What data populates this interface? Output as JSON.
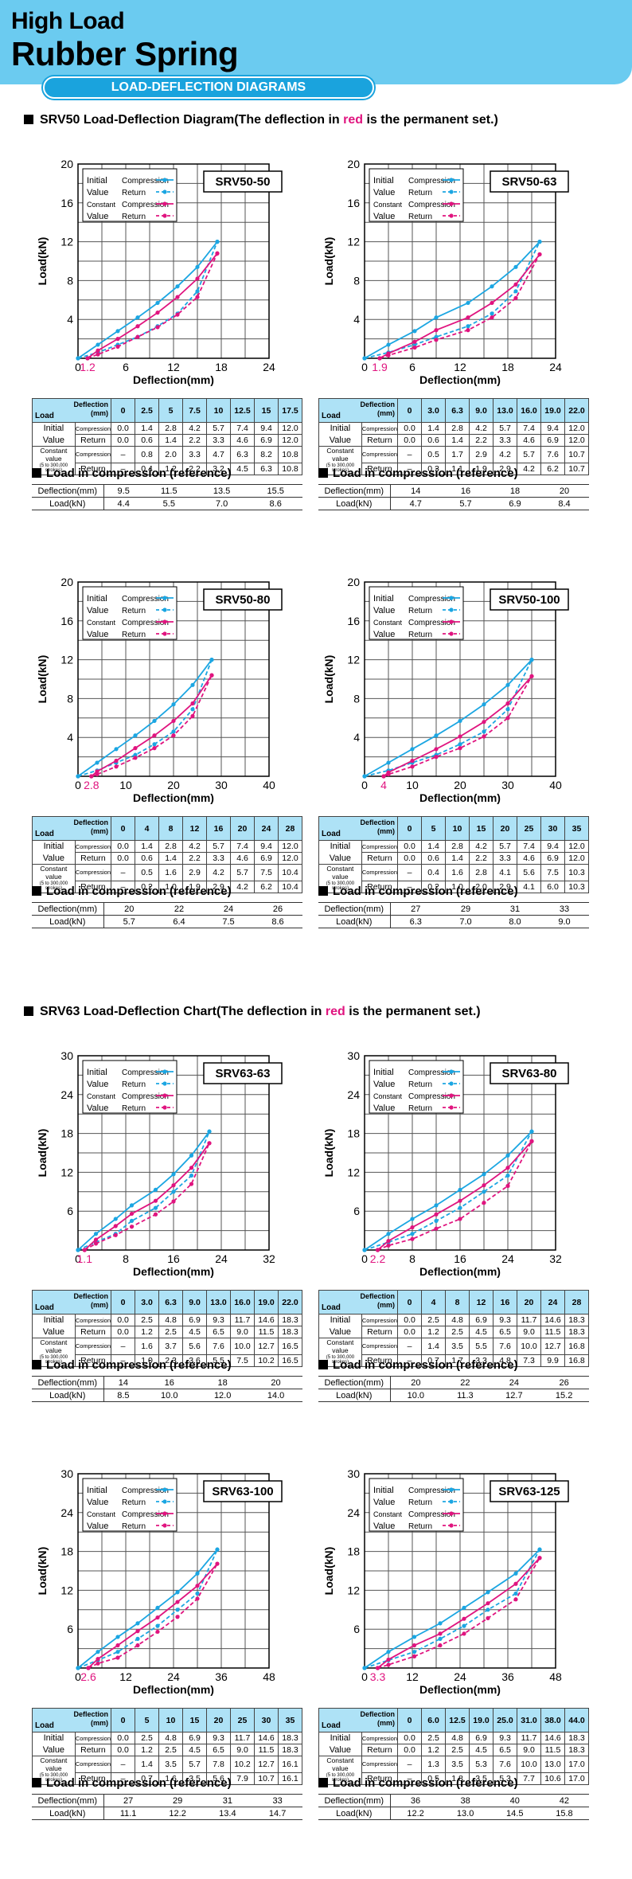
{
  "header": {
    "title_line1": "High Load",
    "title_line2": "Rubber Spring",
    "subtitle": "LOAD-DEFLECTION DIAGRAMS"
  },
  "sections": [
    {
      "prefix": "SRV50 Load-Deflection Diagram(The deflection in ",
      "red_word": "red",
      "suffix": " is the permanent set.)"
    },
    {
      "prefix": "SRV63 Load-Deflection Chart(The deflection in ",
      "red_word": "red",
      "suffix": " is the permanent set.)"
    }
  ],
  "labels": {
    "xlabel": "Deflection(mm)",
    "ylabel": "Load(kN)",
    "legend_initial": "Initial",
    "legend_value": "Value",
    "legend_constant": "Constant",
    "legend_compression": "Compression",
    "legend_return": "Return",
    "table_load": "Load",
    "table_deflection": "Deflection",
    "table_mm": "(mm)",
    "row_initial": "Initial",
    "row_value": "Value",
    "row_constant": "Constant value",
    "row_constant_note": "(5 to 300,000 strokes)",
    "row_compression": "Compression",
    "row_return": "Return",
    "ref_caption": "Load in compression (reference)",
    "ref_deflection": "Deflection(mm)",
    "ref_load": "Load(kN)"
  },
  "colors": {
    "initial": "#1ba6e2",
    "constant": "#e0147f",
    "header_bg": "#6bcbf0",
    "pill": "#1aa3dd",
    "table_head": "#aee2f6"
  },
  "chart_data": [
    {
      "model": "SRV50-50",
      "type": "line",
      "xlim": [
        0,
        24
      ],
      "ylim": [
        0,
        20
      ],
      "xticks": [
        0,
        6,
        12,
        18,
        24
      ],
      "yticks": [
        0,
        4,
        8,
        12,
        16,
        20
      ],
      "perm_set": "1.2",
      "perm_value": 1.2,
      "x": [
        "0",
        "2.5",
        "5",
        "7.5",
        "10",
        "12.5",
        "15",
        "17.5"
      ],
      "init_comp": [
        "0.0",
        "1.4",
        "2.8",
        "4.2",
        "5.7",
        "7.4",
        "9.4",
        "12.0"
      ],
      "init_ret": [
        "0.0",
        "0.6",
        "1.4",
        "2.2",
        "3.3",
        "4.6",
        "6.9",
        "12.0"
      ],
      "const_comp": [
        "–",
        "0.8",
        "2.0",
        "3.3",
        "4.7",
        "6.3",
        "8.2",
        "10.8"
      ],
      "const_ret": [
        "–",
        "0.4",
        "1.2",
        "2.2",
        "3.2",
        "4.5",
        "6.3",
        "10.8"
      ],
      "ref_defl": [
        "9.5",
        "11.5",
        "13.5",
        "15.5"
      ],
      "ref_load": [
        "4.4",
        "5.5",
        "7.0",
        "8.6"
      ]
    },
    {
      "model": "SRV50-63",
      "type": "line",
      "xlim": [
        0,
        24
      ],
      "ylim": [
        0,
        20
      ],
      "xticks": [
        0,
        6,
        12,
        18,
        24
      ],
      "yticks": [
        0,
        4,
        8,
        12,
        16,
        20
      ],
      "perm_set": "1.9",
      "perm_value": 1.9,
      "x": [
        "0",
        "3.0",
        "6.3",
        "9.0",
        "13.0",
        "16.0",
        "19.0",
        "22.0"
      ],
      "init_comp": [
        "0.0",
        "1.4",
        "2.8",
        "4.2",
        "5.7",
        "7.4",
        "9.4",
        "12.0"
      ],
      "init_ret": [
        "0.0",
        "0.6",
        "1.4",
        "2.2",
        "3.3",
        "4.6",
        "6.9",
        "12.0"
      ],
      "const_comp": [
        "–",
        "0.5",
        "1.7",
        "2.9",
        "4.2",
        "5.7",
        "7.6",
        "10.7"
      ],
      "const_ret": [
        "–",
        "0.3",
        "1.1",
        "1.9",
        "2.9",
        "4.2",
        "6.2",
        "10.7"
      ],
      "ref_defl": [
        "14",
        "16",
        "18",
        "20"
      ],
      "ref_load": [
        "4.7",
        "5.7",
        "6.9",
        "8.4"
      ]
    },
    {
      "model": "SRV50-80",
      "type": "line",
      "xlim": [
        0,
        40
      ],
      "ylim": [
        0,
        20
      ],
      "xticks": [
        0,
        10,
        20,
        30,
        40
      ],
      "yticks": [
        0,
        4,
        8,
        12,
        16,
        20
      ],
      "perm_set": "2.8",
      "perm_value": 2.8,
      "x": [
        "0",
        "4",
        "8",
        "12",
        "16",
        "20",
        "24",
        "28"
      ],
      "init_comp": [
        "0.0",
        "1.4",
        "2.8",
        "4.2",
        "5.7",
        "7.4",
        "9.4",
        "12.0"
      ],
      "init_ret": [
        "0.0",
        "0.6",
        "1.4",
        "2.2",
        "3.3",
        "4.6",
        "6.9",
        "12.0"
      ],
      "const_comp": [
        "–",
        "0.5",
        "1.6",
        "2.9",
        "4.2",
        "5.7",
        "7.5",
        "10.4"
      ],
      "const_ret": [
        "–",
        "0.2",
        "1.0",
        "1.9",
        "2.9",
        "4.2",
        "6.2",
        "10.4"
      ],
      "ref_defl": [
        "20",
        "22",
        "24",
        "26"
      ],
      "ref_load": [
        "5.7",
        "6.4",
        "7.5",
        "8.6"
      ]
    },
    {
      "model": "SRV50-100",
      "type": "line",
      "xlim": [
        0,
        40
      ],
      "ylim": [
        0,
        20
      ],
      "xticks": [
        0,
        10,
        20,
        30,
        40
      ],
      "yticks": [
        0,
        4,
        8,
        12,
        16,
        20
      ],
      "perm_set": "4",
      "perm_value": 4,
      "x": [
        "0",
        "5",
        "10",
        "15",
        "20",
        "25",
        "30",
        "35"
      ],
      "init_comp": [
        "0.0",
        "1.4",
        "2.8",
        "4.2",
        "5.7",
        "7.4",
        "9.4",
        "12.0"
      ],
      "init_ret": [
        "0.0",
        "0.6",
        "1.4",
        "2.2",
        "3.3",
        "4.6",
        "6.9",
        "12.0"
      ],
      "const_comp": [
        "–",
        "0.4",
        "1.6",
        "2.8",
        "4.1",
        "5.6",
        "7.5",
        "10.3"
      ],
      "const_ret": [
        "–",
        "0.2",
        "1.0",
        "2.0",
        "2.9",
        "4.1",
        "6.0",
        "10.3"
      ],
      "ref_defl": [
        "27",
        "29",
        "31",
        "33"
      ],
      "ref_load": [
        "6.3",
        "7.0",
        "8.0",
        "9.0"
      ]
    },
    {
      "model": "SRV63-63",
      "type": "line",
      "xlim": [
        0,
        32
      ],
      "ylim": [
        0,
        30
      ],
      "xticks": [
        0,
        8,
        16,
        24,
        32
      ],
      "yticks": [
        0,
        6,
        12,
        18,
        24,
        30
      ],
      "perm_set": "1.1",
      "perm_value": 1.1,
      "x": [
        "0",
        "3.0",
        "6.3",
        "9.0",
        "13.0",
        "16.0",
        "19.0",
        "22.0"
      ],
      "init_comp": [
        "0.0",
        "2.5",
        "4.8",
        "6.9",
        "9.3",
        "11.7",
        "14.6",
        "18.3"
      ],
      "init_ret": [
        "0.0",
        "1.2",
        "2.5",
        "4.5",
        "6.5",
        "9.0",
        "11.5",
        "18.3"
      ],
      "const_comp": [
        "–",
        "1.6",
        "3.7",
        "5.6",
        "7.6",
        "10.0",
        "12.7",
        "16.5"
      ],
      "const_ret": [
        "–",
        "1.0",
        "2.3",
        "3.6",
        "5.5",
        "7.5",
        "10.2",
        "16.5"
      ],
      "ref_defl": [
        "14",
        "16",
        "18",
        "20"
      ],
      "ref_load": [
        "8.5",
        "10.0",
        "12.0",
        "14.0"
      ]
    },
    {
      "model": "SRV63-80",
      "type": "line",
      "xlim": [
        0,
        32
      ],
      "ylim": [
        0,
        30
      ],
      "xticks": [
        0,
        8,
        16,
        24,
        32
      ],
      "yticks": [
        0,
        6,
        12,
        18,
        24,
        30
      ],
      "perm_set": "2.2",
      "perm_value": 2.2,
      "x": [
        "0",
        "4",
        "8",
        "12",
        "16",
        "20",
        "24",
        "28"
      ],
      "init_comp": [
        "0.0",
        "2.5",
        "4.8",
        "6.9",
        "9.3",
        "11.7",
        "14.6",
        "18.3"
      ],
      "init_ret": [
        "0.0",
        "1.2",
        "2.5",
        "4.5",
        "6.5",
        "9.0",
        "11.5",
        "18.3"
      ],
      "const_comp": [
        "–",
        "1.4",
        "3.5",
        "5.5",
        "7.6",
        "10.0",
        "12.7",
        "16.8"
      ],
      "const_ret": [
        "–",
        "0.7",
        "1.7",
        "3.3",
        "4.8",
        "7.3",
        "9.9",
        "16.8"
      ],
      "ref_defl": [
        "20",
        "22",
        "24",
        "26"
      ],
      "ref_load": [
        "10.0",
        "11.3",
        "12.7",
        "15.2"
      ]
    },
    {
      "model": "SRV63-100",
      "type": "line",
      "xlim": [
        0,
        48
      ],
      "ylim": [
        0,
        30
      ],
      "xticks": [
        0,
        12,
        24,
        36,
        48
      ],
      "yticks": [
        0,
        6,
        12,
        18,
        24,
        30
      ],
      "perm_set": "2.6",
      "perm_value": 2.6,
      "x": [
        "0",
        "5",
        "10",
        "15",
        "20",
        "25",
        "30",
        "35"
      ],
      "init_comp": [
        "0.0",
        "2.5",
        "4.8",
        "6.9",
        "9.3",
        "11.7",
        "14.6",
        "18.3"
      ],
      "init_ret": [
        "0.0",
        "1.2",
        "2.5",
        "4.5",
        "6.5",
        "9.0",
        "11.5",
        "18.3"
      ],
      "const_comp": [
        "–",
        "1.4",
        "3.5",
        "5.7",
        "7.8",
        "10.2",
        "12.7",
        "16.1"
      ],
      "const_ret": [
        "–",
        "0.7",
        "1.6",
        "3.5",
        "5.6",
        "7.9",
        "10.7",
        "16.1"
      ],
      "ref_defl": [
        "27",
        "29",
        "31",
        "33"
      ],
      "ref_load": [
        "11.1",
        "12.2",
        "13.4",
        "14.7"
      ]
    },
    {
      "model": "SRV63-125",
      "type": "line",
      "xlim": [
        0,
        48
      ],
      "ylim": [
        0,
        30
      ],
      "xticks": [
        0,
        12,
        24,
        36,
        48
      ],
      "yticks": [
        0,
        6,
        12,
        18,
        24,
        30
      ],
      "perm_set": "3.3",
      "perm_value": 3.3,
      "x": [
        "0",
        "6.0",
        "12.5",
        "19.0",
        "25.0",
        "31.0",
        "38.0",
        "44.0"
      ],
      "init_comp": [
        "0.0",
        "2.5",
        "4.8",
        "6.9",
        "9.3",
        "11.7",
        "14.6",
        "18.3"
      ],
      "init_ret": [
        "0.0",
        "1.2",
        "2.5",
        "4.5",
        "6.5",
        "9.0",
        "11.5",
        "18.3"
      ],
      "const_comp": [
        "–",
        "1.3",
        "3.5",
        "5.3",
        "7.6",
        "10.0",
        "13.0",
        "17.0"
      ],
      "const_ret": [
        "–",
        "0.5",
        "1.8",
        "3.5",
        "5.3",
        "7.7",
        "10.6",
        "17.0"
      ],
      "ref_defl": [
        "36",
        "38",
        "40",
        "42"
      ],
      "ref_load": [
        "12.2",
        "13.0",
        "14.5",
        "15.8"
      ]
    }
  ]
}
